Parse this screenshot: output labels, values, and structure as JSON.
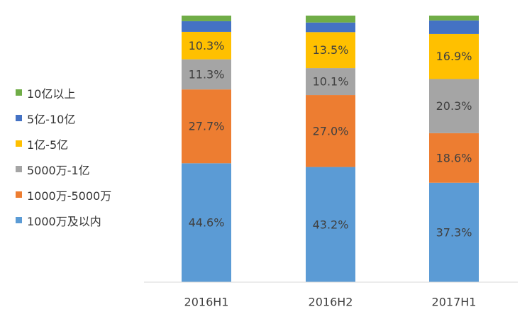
{
  "chart_data": {
    "type": "bar",
    "stacked": true,
    "percent_stacked": true,
    "categories": [
      "2016H1",
      "2016H2",
      "2017H1"
    ],
    "series": [
      {
        "name": "1000万及以内",
        "values": [
          44.6,
          43.2,
          37.3
        ],
        "color": "#5B9BD5",
        "labels": [
          "44.6%",
          "43.2%",
          "37.3%"
        ]
      },
      {
        "name": "1000万-5000万",
        "values": [
          27.7,
          27.0,
          18.6
        ],
        "color": "#ED7D31",
        "labels": [
          "27.7%",
          "27.0%",
          "18.6%"
        ]
      },
      {
        "name": "5000万-1亿",
        "values": [
          11.3,
          10.1,
          20.3
        ],
        "color": "#A5A5A5",
        "labels": [
          "11.3%",
          "10.1%",
          "20.3%"
        ]
      },
      {
        "name": "1亿-5亿",
        "values": [
          10.3,
          13.5,
          16.9
        ],
        "color": "#FFC000",
        "labels": [
          "10.3%",
          "13.5%",
          "16.9%"
        ]
      },
      {
        "name": "5亿-10亿",
        "values": [
          4.0,
          3.6,
          5.1
        ],
        "color": "#4472C4",
        "labels": [
          "",
          "",
          ""
        ]
      },
      {
        "name": "10亿以上",
        "values": [
          2.1,
          2.6,
          1.8
        ],
        "color": "#70AD47",
        "labels": [
          "",
          "",
          ""
        ]
      }
    ],
    "ylim": [
      0,
      100
    ],
    "legend_position": "left",
    "legend_order": [
      "10亿以上",
      "5亿-10亿",
      "1亿-5亿",
      "5000万-1亿",
      "1000万-5000万",
      "1000万及以内"
    ],
    "grid": false
  }
}
